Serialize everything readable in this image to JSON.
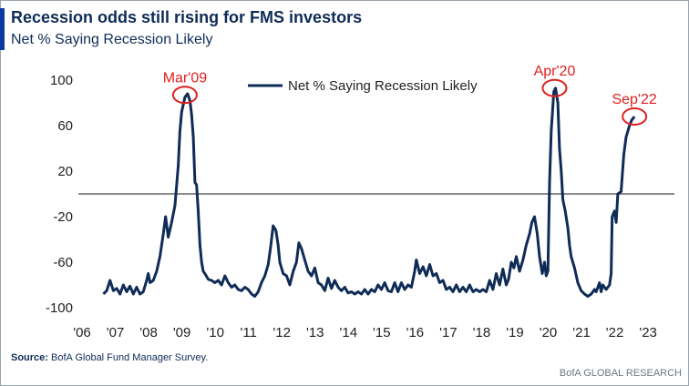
{
  "header": {
    "title": "Recession odds still rising for FMS investors",
    "subtitle": "Net % Saying Recession Likely"
  },
  "footer": {
    "source_label": "Source:",
    "source_text": "BofA Global Fund Manager Survey.",
    "brand": "BofA GLOBAL RESEARCH"
  },
  "colors": {
    "line": "#0f2c57",
    "annotation": "#e02020",
    "zero_line": "#666666",
    "accent": "#0a3aa0"
  },
  "chart_data": {
    "type": "line",
    "title": "",
    "xlabel": "",
    "ylabel": "",
    "ylim": [
      -100,
      100
    ],
    "yticks": [
      100,
      60,
      20,
      -20,
      -60,
      -100
    ],
    "xlim": [
      2006,
      2023.9
    ],
    "xticks": [
      {
        "value": 2006,
        "label": "'06"
      },
      {
        "value": 2007,
        "label": "'07"
      },
      {
        "value": 2008,
        "label": "'08"
      },
      {
        "value": 2009,
        "label": "'09"
      },
      {
        "value": 2010,
        "label": "'10"
      },
      {
        "value": 2011,
        "label": "'11"
      },
      {
        "value": 2012,
        "label": "'12"
      },
      {
        "value": 2013,
        "label": "'13"
      },
      {
        "value": 2014,
        "label": "'14"
      },
      {
        "value": 2015,
        "label": "'15"
      },
      {
        "value": 2016,
        "label": "'16"
      },
      {
        "value": 2017,
        "label": "'17"
      },
      {
        "value": 2018,
        "label": "'18"
      },
      {
        "value": 2019,
        "label": "'19"
      },
      {
        "value": 2020,
        "label": "'20"
      },
      {
        "value": 2021,
        "label": "'21"
      },
      {
        "value": 2022,
        "label": "'22"
      },
      {
        "value": 2023,
        "label": "'23"
      }
    ],
    "legend": {
      "placement": "top-center",
      "entries": [
        "Net % Saying Recession Likely"
      ]
    },
    "reference_line": 0,
    "annotations": [
      {
        "label": "Mar'09",
        "x": 2009.2,
        "y": 87
      },
      {
        "label": "Apr'20",
        "x": 2020.3,
        "y": 93
      },
      {
        "label": "Sep'22",
        "x": 2022.7,
        "y": 68
      }
    ],
    "series": [
      {
        "name": "Net % Saying Recession Likely",
        "points": [
          [
            2006.75,
            -88
          ],
          [
            2006.85,
            -85
          ],
          [
            2006.95,
            -76
          ],
          [
            2007.05,
            -85
          ],
          [
            2007.15,
            -83
          ],
          [
            2007.25,
            -88
          ],
          [
            2007.35,
            -80
          ],
          [
            2007.45,
            -86
          ],
          [
            2007.55,
            -81
          ],
          [
            2007.65,
            -88
          ],
          [
            2007.75,
            -82
          ],
          [
            2007.85,
            -88
          ],
          [
            2007.95,
            -86
          ],
          [
            2008.05,
            -76
          ],
          [
            2008.1,
            -70
          ],
          [
            2008.15,
            -78
          ],
          [
            2008.25,
            -76
          ],
          [
            2008.35,
            -68
          ],
          [
            2008.45,
            -55
          ],
          [
            2008.55,
            -35
          ],
          [
            2008.62,
            -20
          ],
          [
            2008.7,
            -38
          ],
          [
            2008.8,
            -25
          ],
          [
            2008.9,
            -10
          ],
          [
            2009.0,
            25
          ],
          [
            2009.05,
            55
          ],
          [
            2009.1,
            72
          ],
          [
            2009.2,
            85
          ],
          [
            2009.28,
            88
          ],
          [
            2009.35,
            82
          ],
          [
            2009.4,
            70
          ],
          [
            2009.45,
            50
          ],
          [
            2009.5,
            10
          ],
          [
            2009.55,
            8
          ],
          [
            2009.6,
            -15
          ],
          [
            2009.65,
            -45
          ],
          [
            2009.7,
            -60
          ],
          [
            2009.75,
            -68
          ],
          [
            2009.8,
            -70
          ],
          [
            2009.9,
            -75
          ],
          [
            2010.0,
            -76
          ],
          [
            2010.1,
            -78
          ],
          [
            2010.2,
            -76
          ],
          [
            2010.3,
            -80
          ],
          [
            2010.4,
            -72
          ],
          [
            2010.5,
            -78
          ],
          [
            2010.6,
            -82
          ],
          [
            2010.7,
            -80
          ],
          [
            2010.8,
            -84
          ],
          [
            2010.9,
            -85
          ],
          [
            2011.0,
            -82
          ],
          [
            2011.1,
            -84
          ],
          [
            2011.2,
            -88
          ],
          [
            2011.3,
            -90
          ],
          [
            2011.4,
            -86
          ],
          [
            2011.5,
            -78
          ],
          [
            2011.6,
            -72
          ],
          [
            2011.7,
            -62
          ],
          [
            2011.78,
            -45
          ],
          [
            2011.85,
            -28
          ],
          [
            2011.93,
            -32
          ],
          [
            2012.0,
            -45
          ],
          [
            2012.05,
            -60
          ],
          [
            2012.15,
            -70
          ],
          [
            2012.25,
            -72
          ],
          [
            2012.35,
            -80
          ],
          [
            2012.45,
            -68
          ],
          [
            2012.55,
            -60
          ],
          [
            2012.62,
            -43
          ],
          [
            2012.7,
            -48
          ],
          [
            2012.8,
            -58
          ],
          [
            2012.9,
            -68
          ],
          [
            2013.0,
            -72
          ],
          [
            2013.1,
            -65
          ],
          [
            2013.2,
            -78
          ],
          [
            2013.3,
            -80
          ],
          [
            2013.4,
            -85
          ],
          [
            2013.5,
            -74
          ],
          [
            2013.6,
            -83
          ],
          [
            2013.7,
            -76
          ],
          [
            2013.8,
            -82
          ],
          [
            2013.9,
            -85
          ],
          [
            2014.0,
            -82
          ],
          [
            2014.1,
            -87
          ],
          [
            2014.2,
            -86
          ],
          [
            2014.3,
            -88
          ],
          [
            2014.4,
            -86
          ],
          [
            2014.5,
            -88
          ],
          [
            2014.6,
            -84
          ],
          [
            2014.7,
            -88
          ],
          [
            2014.8,
            -84
          ],
          [
            2014.9,
            -86
          ],
          [
            2015.0,
            -80
          ],
          [
            2015.1,
            -84
          ],
          [
            2015.2,
            -78
          ],
          [
            2015.3,
            -85
          ],
          [
            2015.4,
            -86
          ],
          [
            2015.5,
            -78
          ],
          [
            2015.6,
            -86
          ],
          [
            2015.7,
            -78
          ],
          [
            2015.8,
            -84
          ],
          [
            2015.9,
            -80
          ],
          [
            2016.0,
            -82
          ],
          [
            2016.1,
            -68
          ],
          [
            2016.15,
            -58
          ],
          [
            2016.25,
            -70
          ],
          [
            2016.35,
            -64
          ],
          [
            2016.45,
            -72
          ],
          [
            2016.55,
            -62
          ],
          [
            2016.65,
            -72
          ],
          [
            2016.75,
            -70
          ],
          [
            2016.85,
            -78
          ],
          [
            2016.95,
            -76
          ],
          [
            2017.05,
            -84
          ],
          [
            2017.15,
            -82
          ],
          [
            2017.25,
            -86
          ],
          [
            2017.35,
            -80
          ],
          [
            2017.45,
            -86
          ],
          [
            2017.55,
            -82
          ],
          [
            2017.65,
            -86
          ],
          [
            2017.75,
            -80
          ],
          [
            2017.85,
            -86
          ],
          [
            2017.95,
            -84
          ],
          [
            2018.05,
            -86
          ],
          [
            2018.15,
            -84
          ],
          [
            2018.25,
            -86
          ],
          [
            2018.35,
            -76
          ],
          [
            2018.45,
            -84
          ],
          [
            2018.55,
            -70
          ],
          [
            2018.65,
            -80
          ],
          [
            2018.75,
            -66
          ],
          [
            2018.85,
            -80
          ],
          [
            2018.92,
            -75
          ],
          [
            2019.0,
            -60
          ],
          [
            2019.08,
            -65
          ],
          [
            2019.15,
            -55
          ],
          [
            2019.25,
            -68
          ],
          [
            2019.35,
            -58
          ],
          [
            2019.45,
            -45
          ],
          [
            2019.55,
            -35
          ],
          [
            2019.62,
            -25
          ],
          [
            2019.7,
            -20
          ],
          [
            2019.78,
            -35
          ],
          [
            2019.85,
            -55
          ],
          [
            2019.93,
            -70
          ],
          [
            2020.0,
            -60
          ],
          [
            2020.05,
            -72
          ],
          [
            2020.1,
            -68
          ],
          [
            2020.15,
            10
          ],
          [
            2020.2,
            55
          ],
          [
            2020.28,
            90
          ],
          [
            2020.33,
            93
          ],
          [
            2020.4,
            80
          ],
          [
            2020.45,
            40
          ],
          [
            2020.5,
            20
          ],
          [
            2020.55,
            -5
          ],
          [
            2020.62,
            -15
          ],
          [
            2020.7,
            -30
          ],
          [
            2020.75,
            -45
          ],
          [
            2020.8,
            -55
          ],
          [
            2020.9,
            -65
          ],
          [
            2021.0,
            -78
          ],
          [
            2021.1,
            -85
          ],
          [
            2021.2,
            -88
          ],
          [
            2021.3,
            -90
          ],
          [
            2021.4,
            -88
          ],
          [
            2021.5,
            -84
          ],
          [
            2021.55,
            -86
          ],
          [
            2021.6,
            -82
          ],
          [
            2021.65,
            -78
          ],
          [
            2021.7,
            -86
          ],
          [
            2021.75,
            -80
          ],
          [
            2021.85,
            -84
          ],
          [
            2021.95,
            -80
          ],
          [
            2022.0,
            -70
          ],
          [
            2022.03,
            -20
          ],
          [
            2022.1,
            -15
          ],
          [
            2022.15,
            -25
          ],
          [
            2022.2,
            0
          ],
          [
            2022.3,
            2
          ],
          [
            2022.38,
            35
          ],
          [
            2022.45,
            50
          ],
          [
            2022.55,
            60
          ],
          [
            2022.62,
            65
          ],
          [
            2022.7,
            68
          ]
        ]
      }
    ]
  }
}
